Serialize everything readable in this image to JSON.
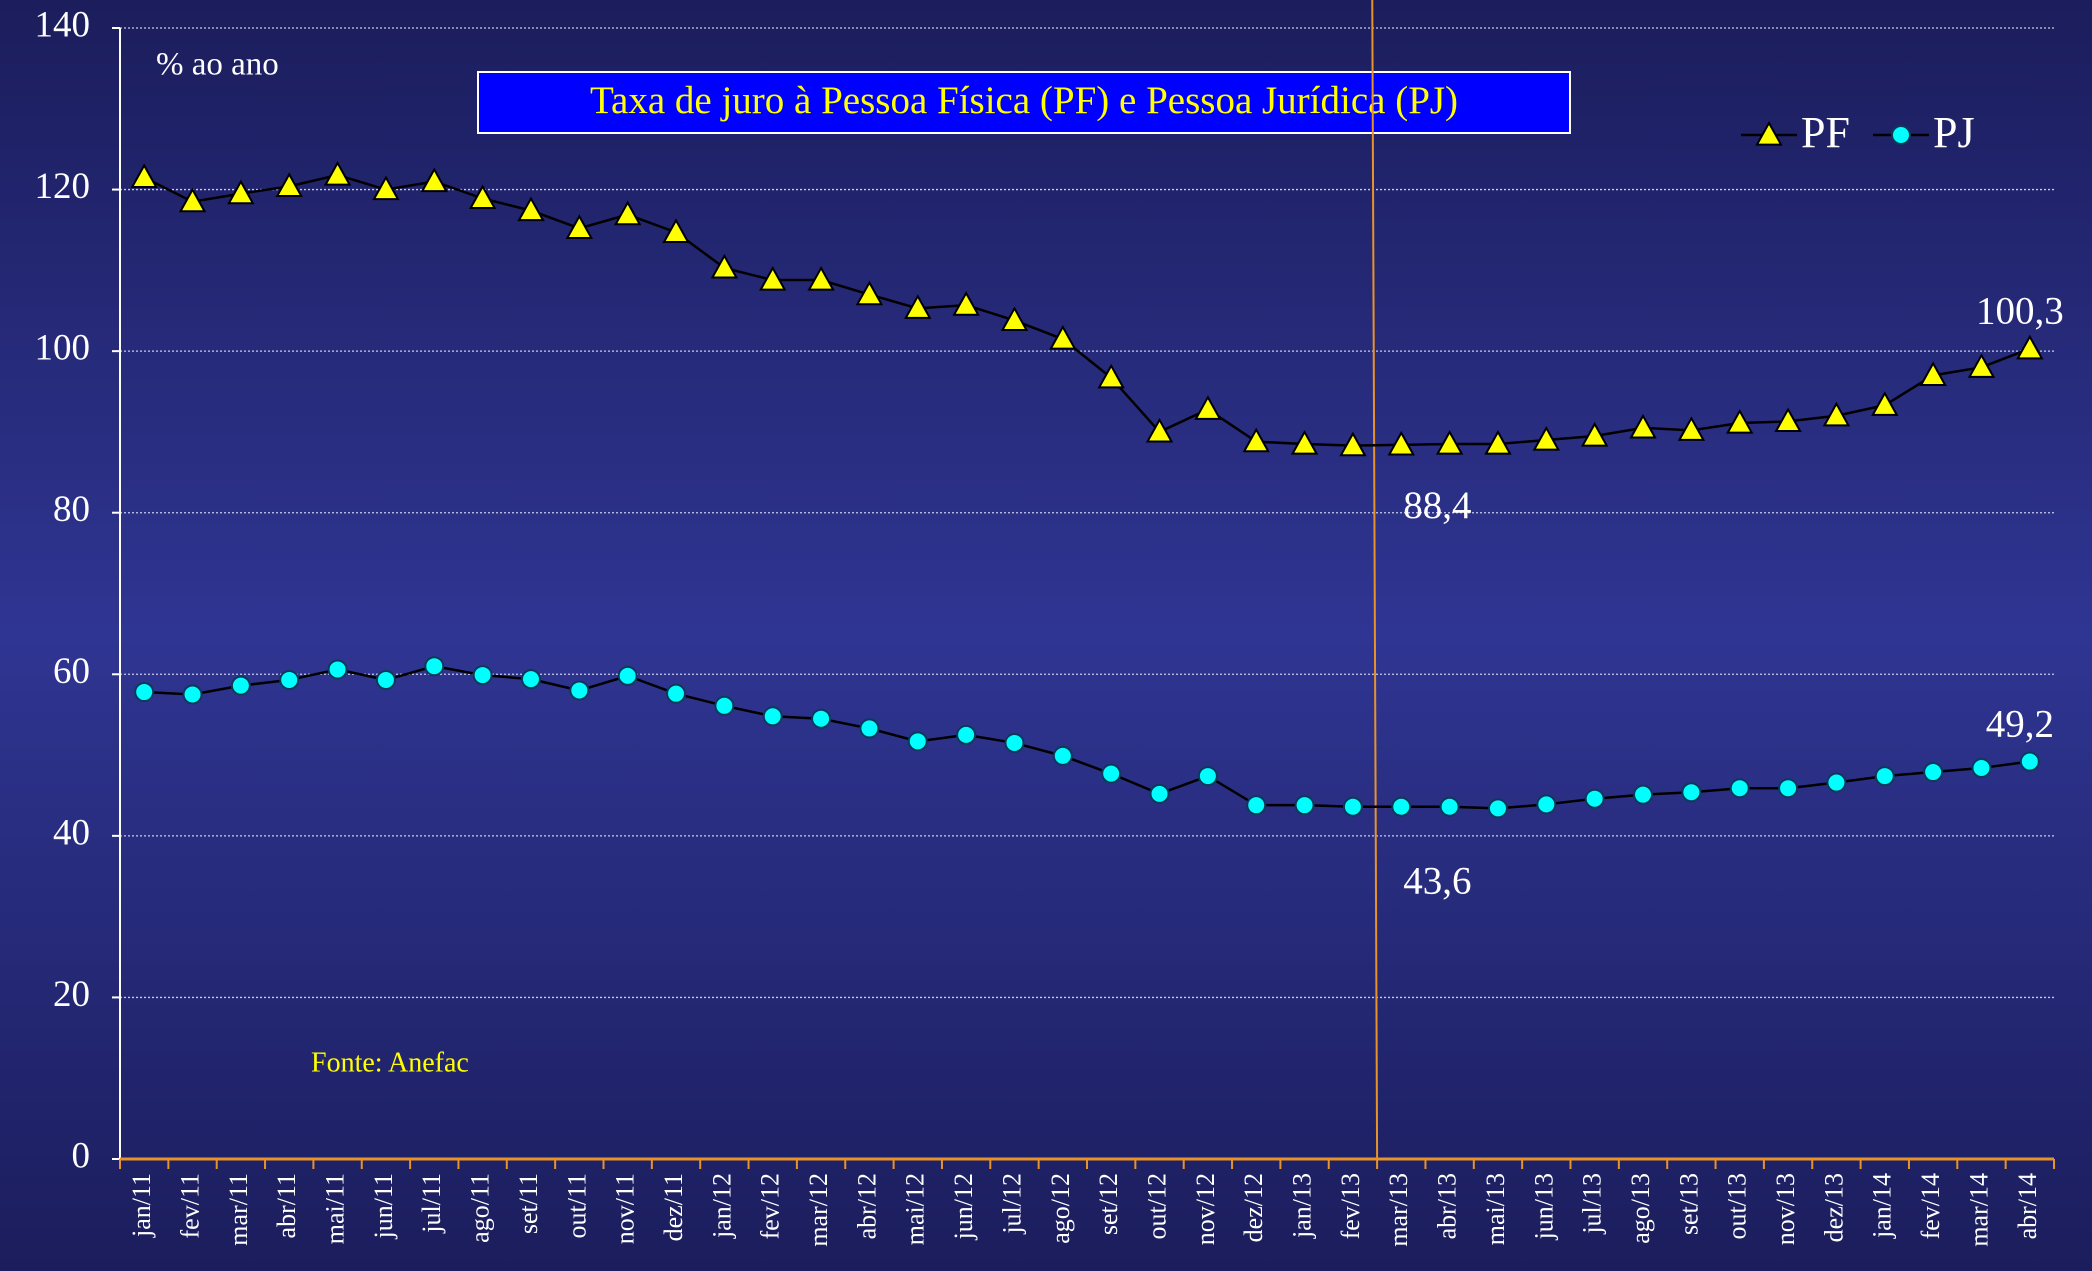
{
  "chart_data": {
    "type": "line",
    "title": "Taxa de juro à Pessoa Física (PF) e Pessoa Jurídica (PJ)",
    "y_axis_label": "% ao ano",
    "source": "Fonte: Anefac",
    "categories": [
      "jan/11",
      "fev/11",
      "mar/11",
      "abr/11",
      "mai/11",
      "jun/11",
      "jul/11",
      "ago/11",
      "set/11",
      "out/11",
      "nov/11",
      "dez/11",
      "jan/12",
      "fev/12",
      "mar/12",
      "abr/12",
      "mai/12",
      "jun/12",
      "jul/12",
      "ago/12",
      "set/12",
      "out/12",
      "nov/12",
      "dez/12",
      "jan/13",
      "fev/13",
      "mar/13",
      "abr/13",
      "mai/13",
      "jun/13",
      "jul/13",
      "ago/13",
      "set/13",
      "out/13",
      "nov/13",
      "dez/13",
      "jan/14",
      "fev/14",
      "mar/14",
      "abr/14"
    ],
    "series": [
      {
        "name": "PF",
        "color": "#ffff00",
        "marker": "triangle",
        "values": [
          121.5,
          118.5,
          119.5,
          120.4,
          121.8,
          120,
          121,
          118.9,
          117.4,
          115.2,
          116.9,
          114.7,
          110.3,
          108.8,
          108.8,
          107,
          105.3,
          105.7,
          103.8,
          101.5,
          96.7,
          90,
          92.8,
          88.8,
          88.5,
          88.3,
          88.4,
          88.5,
          88.5,
          89,
          89.5,
          90.5,
          90.2,
          91.1,
          91.3,
          92,
          93.3,
          97,
          98,
          100.3
        ],
        "value_labels": [
          null,
          null,
          null,
          null,
          null,
          null,
          null,
          null,
          null,
          null,
          null,
          null,
          null,
          null,
          null,
          null,
          null,
          null,
          null,
          null,
          null,
          null,
          null,
          null,
          null,
          null,
          "88,4",
          null,
          null,
          null,
          null,
          null,
          null,
          null,
          null,
          null,
          null,
          null,
          null,
          "100,3"
        ]
      },
      {
        "name": "PJ",
        "color": "#00ffff",
        "marker": "circle",
        "values": [
          57.8,
          57.5,
          58.6,
          59.3,
          60.6,
          59.3,
          61,
          59.9,
          59.4,
          58,
          59.8,
          57.6,
          56.1,
          54.8,
          54.5,
          53.3,
          51.7,
          52.5,
          51.5,
          49.9,
          47.7,
          45.2,
          47.4,
          43.8,
          43.8,
          43.6,
          43.6,
          43.6,
          43.4,
          43.9,
          44.6,
          45.1,
          45.4,
          45.9,
          45.9,
          46.6,
          47.4,
          47.9,
          48.4,
          49.2
        ],
        "value_labels": [
          null,
          null,
          null,
          null,
          null,
          null,
          null,
          null,
          null,
          null,
          null,
          null,
          null,
          null,
          null,
          null,
          null,
          null,
          null,
          null,
          null,
          null,
          null,
          null,
          null,
          null,
          "43,6",
          null,
          null,
          null,
          null,
          null,
          null,
          null,
          null,
          null,
          null,
          null,
          null,
          "49,2"
        ]
      }
    ],
    "ylim": [
      0,
      140
    ],
    "yticks": [
      0,
      20,
      40,
      60,
      80,
      100,
      120,
      140
    ],
    "grid": true,
    "legend": "upper right"
  }
}
